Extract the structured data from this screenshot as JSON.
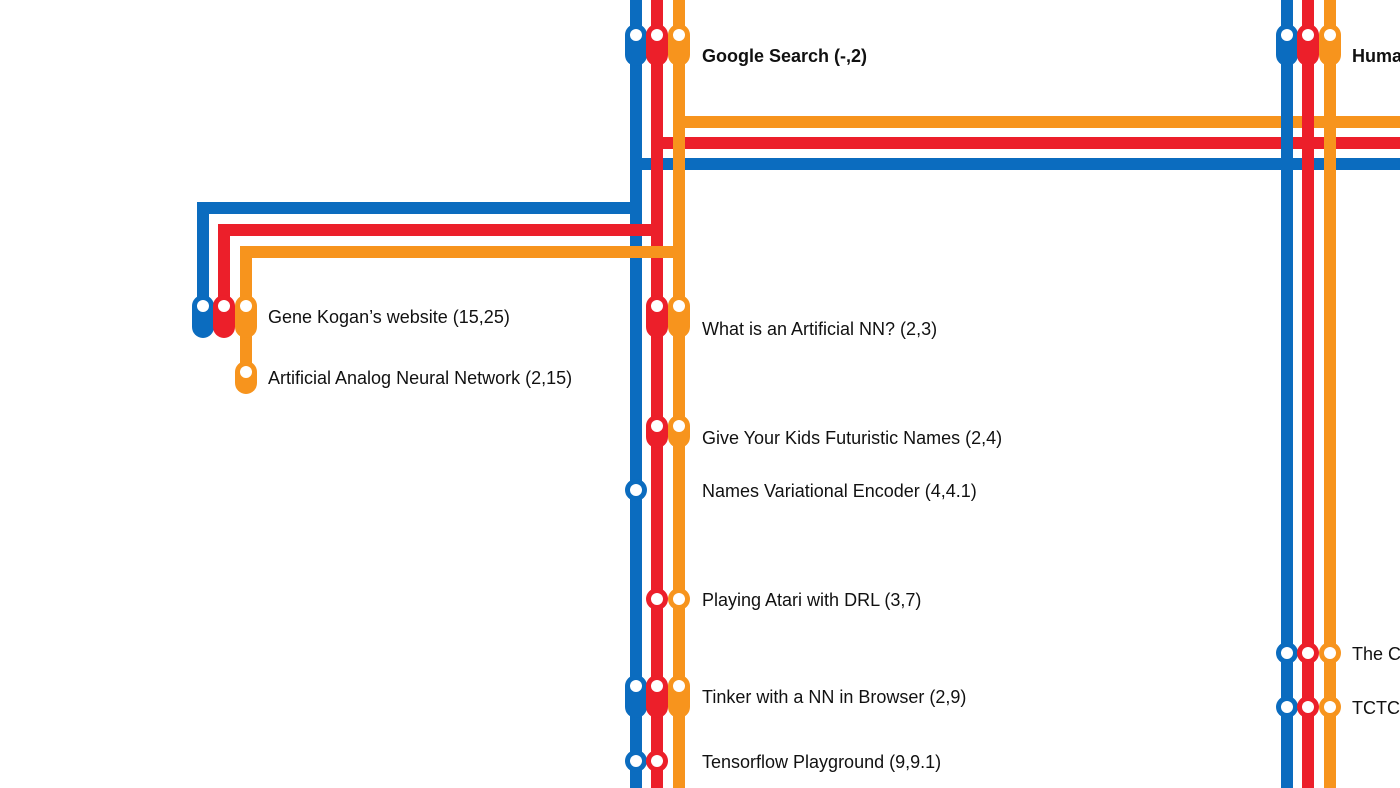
{
  "colors": {
    "blue": "#0b6cbf",
    "red": "#ec1f2a",
    "orange": "#f7941d",
    "background": "#ffffff"
  },
  "stations": {
    "google_search": "Google Search (-,2)",
    "human": "Huma",
    "gene_kogan": "Gene Kogan’s website (15,25)",
    "artificial_analog": "Artificial Analog Neural Network (2,15)",
    "what_is_ann": "What is an Artificial NN? (2,3)",
    "futuristic_names": "Give Your Kids Futuristic Names (2,4)",
    "names_vae": "Names Variational Encoder (4,4.1)",
    "atari_drl": "Playing Atari with DRL (3,7)",
    "tinker_nn": "Tinker with a NN in Browser (2,9)",
    "tf_playground": "Tensorflow Playground (9,9.1)",
    "the_c": "The C",
    "tctc": "TCTC"
  }
}
